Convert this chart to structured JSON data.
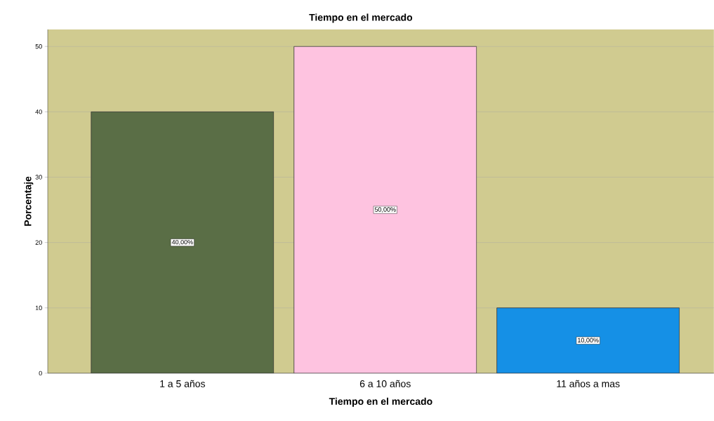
{
  "chart_data": {
    "type": "bar",
    "title": "Tiempo en el mercado",
    "xlabel": "Tiempo en el mercado",
    "ylabel": "Porcentaje",
    "categories": [
      "1 a 5 años",
      "6 a 10 años",
      "11 años a mas"
    ],
    "values": [
      40,
      50,
      10
    ],
    "colors": [
      "#5a6e46",
      "#fec3e0",
      "#1590e6"
    ],
    "value_labels": [
      "40,00%",
      "50,00%",
      "10,00%"
    ],
    "ylim": [
      0,
      52.6
    ],
    "yticks": [
      0,
      10,
      20,
      30,
      40,
      50
    ],
    "grid": "y"
  }
}
